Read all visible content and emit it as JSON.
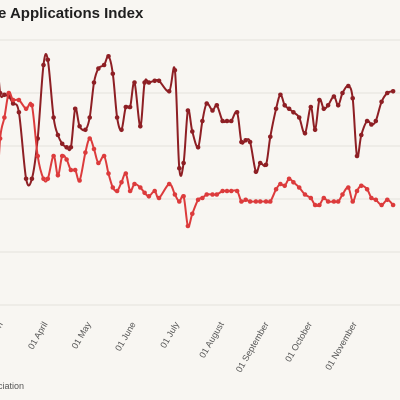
{
  "title": "e Applications Index",
  "source": "ciation",
  "colors": {
    "background": "#f8f6f2",
    "grid": "#e3e1dc",
    "series_dark": "#8e1f24",
    "series_light": "#dc3b3c"
  },
  "chart_data": {
    "type": "line",
    "title": "e Applications Index",
    "xlabel": "",
    "ylabel": "",
    "grid": true,
    "legend": "none",
    "xlim": [
      "2024-02-23",
      "2024-11-30"
    ],
    "x_ticks": [
      "2024-03-01",
      "2024-04-01",
      "2024-05-01",
      "2024-06-01",
      "2024-07-01",
      "2024-08-01",
      "2024-09-01",
      "2024-10-01",
      "2024-11-01"
    ],
    "x_tick_labels": [
      "ch",
      "01 April",
      "01 May",
      "01 June",
      "01 July",
      "01 August",
      "01 September",
      "01 October",
      "01 November"
    ],
    "series": [
      {
        "color": "#8e1f24",
        "points": [
          [
            "2024-02-23",
            192
          ],
          [
            "2024-02-27",
            192
          ],
          [
            "2024-03-01",
            164
          ],
          [
            "2024-03-04",
            163
          ],
          [
            "2024-03-07",
            162
          ],
          [
            "2024-03-10",
            158
          ],
          [
            "2024-03-14",
            153
          ],
          [
            "2024-03-19",
            115
          ],
          [
            "2024-03-23",
            115
          ],
          [
            "2024-03-27",
            138
          ],
          [
            "2024-03-31",
            180
          ],
          [
            "2024-04-03",
            183
          ],
          [
            "2024-04-07",
            150
          ],
          [
            "2024-04-10",
            140
          ],
          [
            "2024-04-13",
            135
          ],
          [
            "2024-04-16",
            133
          ],
          [
            "2024-04-19",
            133
          ],
          [
            "2024-04-22",
            155
          ],
          [
            "2024-04-25",
            145
          ],
          [
            "2024-04-29",
            143
          ],
          [
            "2024-05-02",
            150
          ],
          [
            "2024-05-05",
            170
          ],
          [
            "2024-05-08",
            178
          ],
          [
            "2024-05-12",
            180
          ],
          [
            "2024-05-15",
            185
          ],
          [
            "2024-05-18",
            175
          ],
          [
            "2024-05-21",
            150
          ],
          [
            "2024-05-24",
            143
          ],
          [
            "2024-05-27",
            156
          ],
          [
            "2024-05-30",
            156
          ],
          [
            "2024-06-02",
            170
          ],
          [
            "2024-06-06",
            145
          ],
          [
            "2024-06-09",
            170
          ],
          [
            "2024-06-12",
            170
          ],
          [
            "2024-06-16",
            171
          ],
          [
            "2024-06-19",
            171
          ],
          [
            "2024-06-26",
            165
          ],
          [
            "2024-06-30",
            177
          ],
          [
            "2024-07-03",
            121
          ],
          [
            "2024-07-06",
            124
          ],
          [
            "2024-07-09",
            154
          ],
          [
            "2024-07-12",
            142
          ],
          [
            "2024-07-16",
            133
          ],
          [
            "2024-07-19",
            148
          ],
          [
            "2024-07-22",
            158
          ],
          [
            "2024-07-26",
            154
          ],
          [
            "2024-07-29",
            157
          ],
          [
            "2024-08-02",
            148
          ],
          [
            "2024-08-05",
            148
          ],
          [
            "2024-08-08",
            148
          ],
          [
            "2024-08-12",
            153
          ],
          [
            "2024-08-15",
            136
          ],
          [
            "2024-08-18",
            137
          ],
          [
            "2024-08-21",
            136
          ],
          [
            "2024-08-25",
            119
          ],
          [
            "2024-08-28",
            124
          ],
          [
            "2024-09-01",
            123
          ],
          [
            "2024-09-04",
            139
          ],
          [
            "2024-09-08",
            155
          ],
          [
            "2024-09-11",
            163
          ],
          [
            "2024-09-14",
            157
          ],
          [
            "2024-09-17",
            155
          ],
          [
            "2024-09-20",
            153
          ],
          [
            "2024-09-24",
            150
          ],
          [
            "2024-09-28",
            141
          ],
          [
            "2024-10-02",
            156
          ],
          [
            "2024-10-05",
            143
          ],
          [
            "2024-10-08",
            160
          ],
          [
            "2024-10-11",
            155
          ],
          [
            "2024-10-14",
            157
          ],
          [
            "2024-10-18",
            162
          ],
          [
            "2024-10-21",
            157
          ],
          [
            "2024-10-24",
            164
          ],
          [
            "2024-10-28",
            168
          ],
          [
            "2024-10-31",
            161
          ],
          [
            "2024-11-03",
            128
          ],
          [
            "2024-11-06",
            140
          ],
          [
            "2024-11-10",
            148
          ],
          [
            "2024-11-13",
            146
          ],
          [
            "2024-11-16",
            148
          ],
          [
            "2024-11-20",
            159
          ],
          [
            "2024-11-24",
            164
          ],
          [
            "2024-11-28",
            165
          ]
        ]
      },
      {
        "color": "#dc3b3c",
        "points": [
          [
            "2024-02-23",
            108
          ],
          [
            "2024-02-27",
            100
          ],
          [
            "2024-03-01",
            138
          ],
          [
            "2024-03-04",
            150
          ],
          [
            "2024-03-07",
            164
          ],
          [
            "2024-03-10",
            160
          ],
          [
            "2024-03-14",
            160
          ],
          [
            "2024-03-19",
            155
          ],
          [
            "2024-03-23",
            157
          ],
          [
            "2024-03-27",
            128
          ],
          [
            "2024-03-31",
            115
          ],
          [
            "2024-04-03",
            115
          ],
          [
            "2024-04-07",
            128
          ],
          [
            "2024-04-10",
            117
          ],
          [
            "2024-04-13",
            128
          ],
          [
            "2024-04-16",
            126
          ],
          [
            "2024-04-19",
            120
          ],
          [
            "2024-04-22",
            120
          ],
          [
            "2024-04-25",
            114
          ],
          [
            "2024-04-29",
            130
          ],
          [
            "2024-05-02",
            138
          ],
          [
            "2024-05-05",
            132
          ],
          [
            "2024-05-08",
            124
          ],
          [
            "2024-05-12",
            128
          ],
          [
            "2024-05-15",
            118
          ],
          [
            "2024-05-18",
            110
          ],
          [
            "2024-05-21",
            108
          ],
          [
            "2024-05-24",
            113
          ],
          [
            "2024-05-27",
            118
          ],
          [
            "2024-05-30",
            108
          ],
          [
            "2024-06-02",
            112
          ],
          [
            "2024-06-06",
            110
          ],
          [
            "2024-06-09",
            107
          ],
          [
            "2024-06-12",
            105
          ],
          [
            "2024-06-16",
            108
          ],
          [
            "2024-06-19",
            104
          ],
          [
            "2024-06-26",
            112
          ],
          [
            "2024-06-30",
            106
          ],
          [
            "2024-07-03",
            102
          ],
          [
            "2024-07-06",
            105
          ],
          [
            "2024-07-09",
            88
          ],
          [
            "2024-07-12",
            95
          ],
          [
            "2024-07-16",
            103
          ],
          [
            "2024-07-19",
            104
          ],
          [
            "2024-07-22",
            106
          ],
          [
            "2024-07-26",
            106
          ],
          [
            "2024-07-29",
            106
          ],
          [
            "2024-08-02",
            108
          ],
          [
            "2024-08-05",
            108
          ],
          [
            "2024-08-08",
            108
          ],
          [
            "2024-08-12",
            108
          ],
          [
            "2024-08-15",
            102
          ],
          [
            "2024-08-18",
            103
          ],
          [
            "2024-08-21",
            102
          ],
          [
            "2024-08-25",
            102
          ],
          [
            "2024-08-28",
            102
          ],
          [
            "2024-09-01",
            102
          ],
          [
            "2024-09-04",
            102
          ],
          [
            "2024-09-08",
            109
          ],
          [
            "2024-09-11",
            112
          ],
          [
            "2024-09-14",
            111
          ],
          [
            "2024-09-17",
            115
          ],
          [
            "2024-09-20",
            113
          ],
          [
            "2024-09-24",
            110
          ],
          [
            "2024-09-28",
            106
          ],
          [
            "2024-10-02",
            104
          ],
          [
            "2024-10-05",
            100
          ],
          [
            "2024-10-08",
            100
          ],
          [
            "2024-10-11",
            104
          ],
          [
            "2024-10-14",
            102
          ],
          [
            "2024-10-18",
            102
          ],
          [
            "2024-10-21",
            102
          ],
          [
            "2024-10-24",
            106
          ],
          [
            "2024-10-28",
            110
          ],
          [
            "2024-10-31",
            102
          ],
          [
            "2024-11-03",
            108
          ],
          [
            "2024-11-06",
            111
          ],
          [
            "2024-11-10",
            109
          ],
          [
            "2024-11-13",
            104
          ],
          [
            "2024-11-16",
            103
          ],
          [
            "2024-11-20",
            100
          ],
          [
            "2024-11-24",
            103
          ],
          [
            "2024-11-28",
            100
          ]
        ]
      }
    ]
  }
}
